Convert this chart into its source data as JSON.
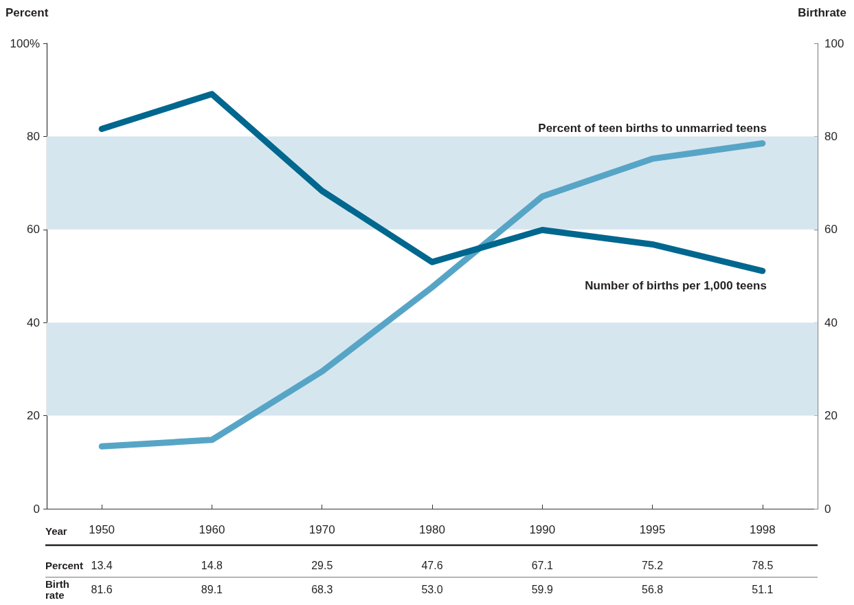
{
  "chart_data": {
    "type": "line",
    "categories": [
      "1950",
      "1960",
      "1970",
      "1980",
      "1990",
      "1995",
      "1998"
    ],
    "xlabel": "Year",
    "ylabel": "Percent",
    "y2label": "Birthrate",
    "series": [
      {
        "name": "Percent of teen births to unmarried teens",
        "color": "#57a5c6",
        "values": [
          13.4,
          14.8,
          29.5,
          47.6,
          67.1,
          75.2,
          78.5
        ],
        "value_labels": [
          "13.4",
          "14.8",
          "29.5",
          "47.6",
          "67.1",
          "75.2",
          "78.5"
        ]
      },
      {
        "name": "Number of births per 1,000 teens",
        "color": "#00678f",
        "axis": "y2",
        "values": [
          81.6,
          89.1,
          68.3,
          53.0,
          59.9,
          56.8,
          51.1
        ],
        "value_labels": [
          "81.6",
          "89.1",
          "68.3",
          "53.0",
          "59.9",
          "56.8",
          "51.1"
        ]
      }
    ],
    "ylim": [
      0,
      100
    ],
    "yticks": [
      0,
      20,
      40,
      60,
      80,
      {
        "value": 100,
        "label": "100%"
      }
    ],
    "y2lim": [
      0,
      100
    ],
    "y2ticks": [
      0,
      20,
      40,
      60,
      80,
      100
    ],
    "bands": [
      {
        "axis": "y",
        "from": 20,
        "to": 40,
        "color": "#d6e6ef"
      },
      {
        "axis": "y",
        "from": 60,
        "to": 80,
        "color": "#d6e6ef"
      }
    ],
    "annotations": [
      "Percent",
      "Birth rate"
    ],
    "marker": "none",
    "line_style": "solid"
  }
}
